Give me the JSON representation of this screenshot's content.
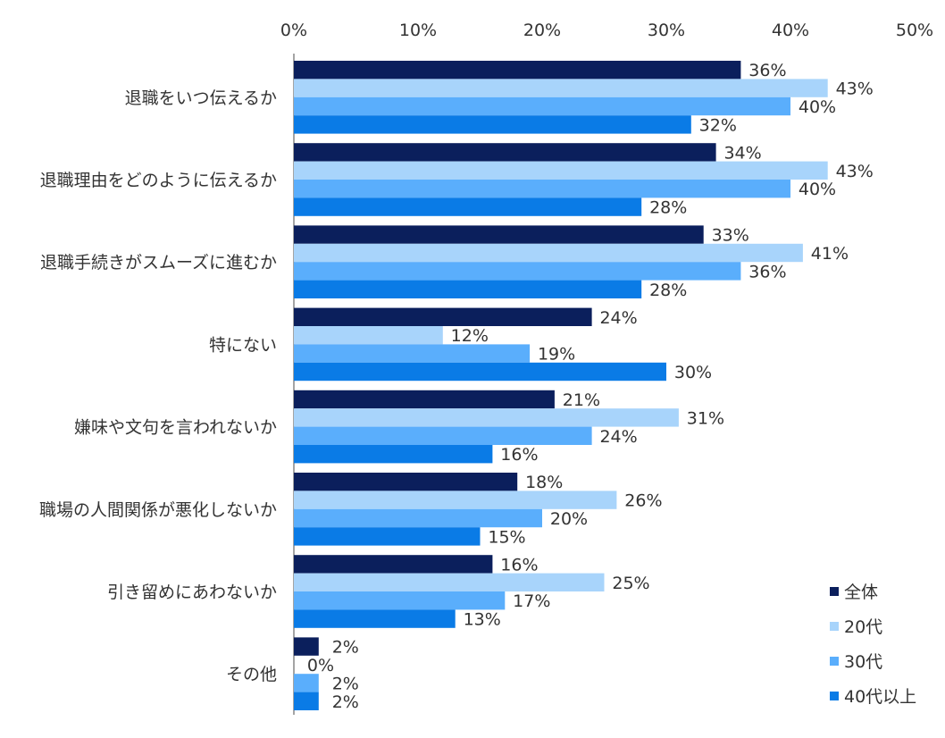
{
  "chart_data": {
    "type": "bar",
    "orientation": "horizontal",
    "title": "",
    "xlabel": "",
    "ylabel": "",
    "xlim": [
      0,
      50
    ],
    "x_ticks": [
      "0%",
      "10%",
      "20%",
      "30%",
      "40%",
      "50%"
    ],
    "x_tick_values": [
      0,
      10,
      20,
      30,
      40,
      50
    ],
    "value_suffix": "%",
    "grid": false,
    "legend_position": "bottom-right",
    "categories": [
      "退職をいつ伝えるか",
      "退職理由をどのように伝えるか",
      "退職手続きがスムーズに進むか",
      "特にない",
      "嫌味や文句を言われないか",
      "職場の人間関係が悪化しないか",
      "引き留めにあわないか",
      "その他"
    ],
    "series": [
      {
        "name": "全体",
        "color": "#0b1f5c",
        "values": [
          36,
          34,
          33,
          24,
          21,
          18,
          16,
          2
        ]
      },
      {
        "name": "20代",
        "color": "#a8d4fb",
        "values": [
          43,
          43,
          41,
          12,
          31,
          26,
          25,
          0
        ]
      },
      {
        "name": "30代",
        "color": "#5aaefc",
        "values": [
          40,
          40,
          36,
          19,
          24,
          20,
          17,
          2
        ]
      },
      {
        "name": "40代以上",
        "color": "#0a7be6",
        "values": [
          32,
          28,
          28,
          30,
          16,
          15,
          13,
          2
        ]
      }
    ]
  }
}
